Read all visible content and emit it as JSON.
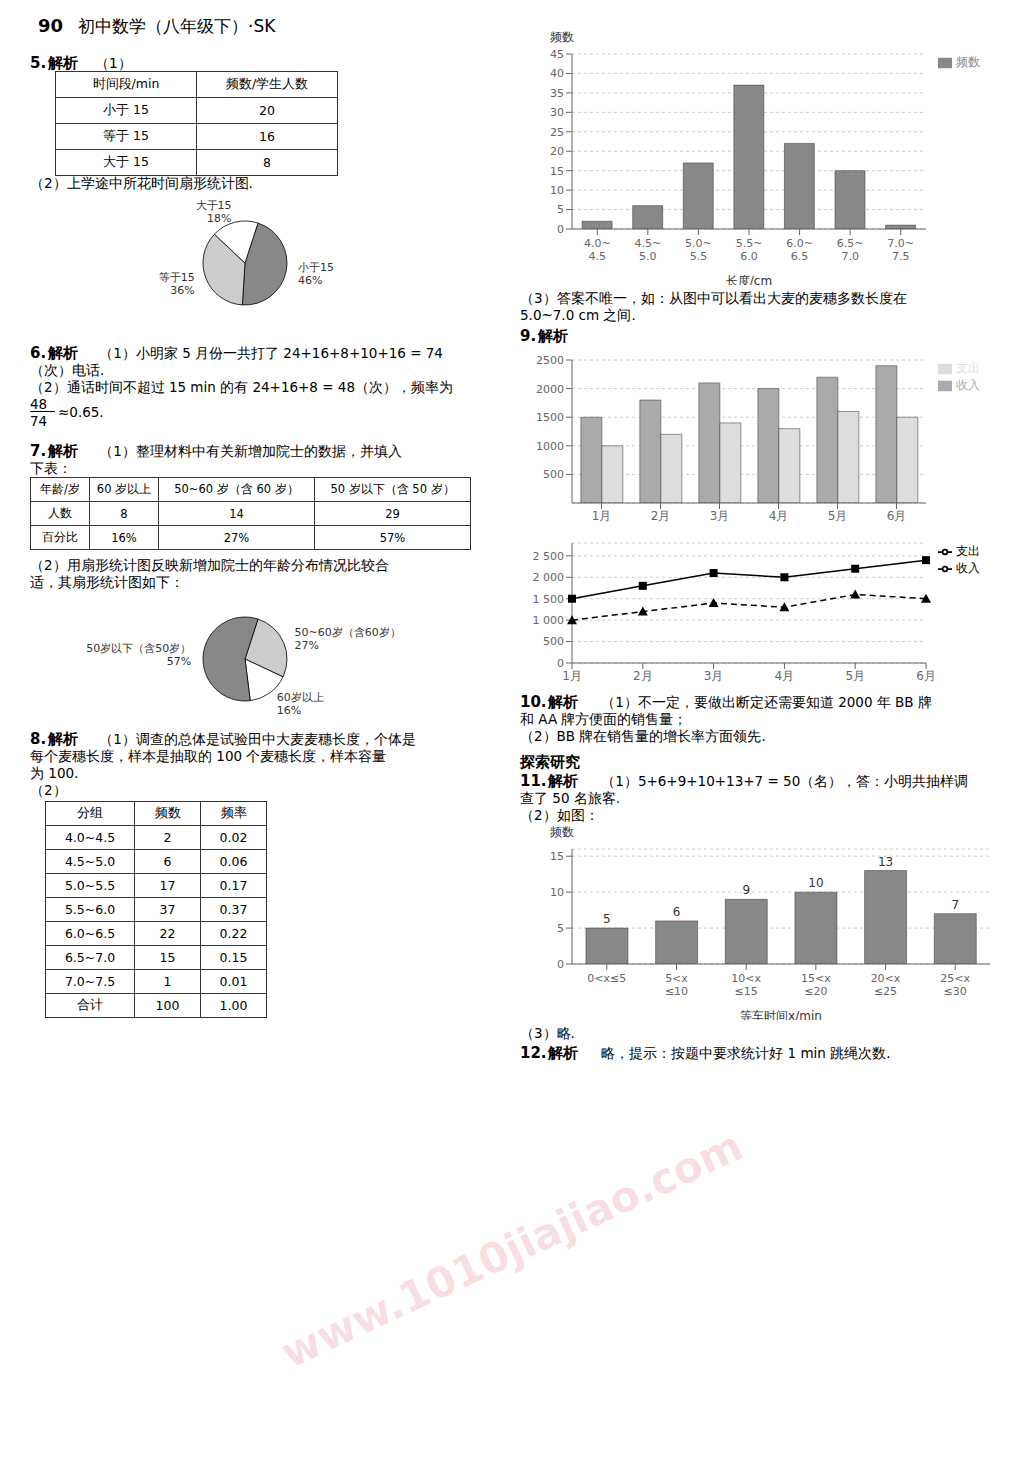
{
  "chart_data": [
    {
      "type": "text",
      "title": "90",
      "subtitle": "初中数学（八年级下）·SK"
    },
    {
      "type": "table",
      "title": "5.",
      "subtitle": "解析",
      "annotations": [
        "（1）"
      ],
      "headers": [
        "时间段/min",
        "频数/学生人数"
      ],
      "rows": [
        [
          "小于 15",
          "20"
        ],
        [
          "等于 15",
          "16"
        ],
        [
          "大于 15",
          "8"
        ]
      ]
    },
    {
      "type": "pie",
      "title": "（2）上学途中所花时间扇形统计图.",
      "categories": [
        "小于15",
        "等于15",
        "大于15"
      ],
      "values": [
        46,
        36,
        18
      ],
      "value_labels": [
        "46%",
        "36%",
        "18%"
      ],
      "colors": [
        "#888888",
        "#cccccc",
        "#ffffff"
      ],
      "data_labels": true
    },
    {
      "type": "text",
      "title": "6.",
      "subtitle": "解析",
      "annotations": [
        " （1）小明家 5 月份一共打了 24+16+8+10+16 = 74",
        "（次）电话.",
        "（2）通话时间不超过 15 min 的有 24+16+8 = 48（次），频率为",
        "48",
        "74",
        "≈0.65."
      ]
    },
    {
      "type": "table",
      "title": "7.",
      "subtitle": "解析",
      "annotations": [
        " （1）整理材料中有关新增加院士的数据，并填入",
        "下表："
      ],
      "headers": [
        "年龄/岁",
        "60 岁以上",
        "50~60 岁（含 60 岁）",
        "50 岁以下（含 50 岁）"
      ],
      "rows": [
        [
          "人数",
          "8",
          "14",
          "29"
        ],
        [
          "百分比",
          "16%",
          "27%",
          "57%"
        ]
      ]
    },
    {
      "type": "pie",
      "annotations": [
        "（2）用扇形统计图反映新增加院士的年龄分布情况比较合",
        "适，其扇形统计图如下："
      ],
      "categories": [
        "50~60岁（含60岁）",
        "60岁以上",
        "50岁以下（含50岁）"
      ],
      "values": [
        27,
        16,
        57
      ],
      "value_labels": [
        "27%",
        "16%",
        "57%"
      ],
      "colors": [
        "#cccccc",
        "#ffffff",
        "#888888"
      ],
      "data_labels": true
    },
    {
      "type": "table",
      "title": "8.",
      "subtitle": "解析",
      "annotations": [
        " （1）调查的总体是试验田中大麦麦穗长度，个体是",
        "每个麦穗长度，样本是抽取的 100 个麦穗长度，样本容量",
        "为 100.",
        "（2）"
      ],
      "headers": [
        "分组",
        "频数",
        "频率"
      ],
      "rows": [
        [
          "4.0~4.5",
          "2",
          "0.02"
        ],
        [
          "4.5~5.0",
          "6",
          "0.06"
        ],
        [
          "5.0~5.5",
          "17",
          "0.17"
        ],
        [
          "5.5~6.0",
          "37",
          "0.37"
        ],
        [
          "6.0~6.5",
          "22",
          "0.22"
        ],
        [
          "6.5~7.0",
          "15",
          "0.15"
        ],
        [
          "7.0~7.5",
          "1",
          "0.01"
        ],
        [
          "合计",
          "100",
          "1.00"
        ]
      ]
    },
    {
      "type": "bar",
      "x_label": "长度/cm",
      "y_label": "频数",
      "categories": [
        "4.0~\n4.5",
        "4.5~\n5.0",
        "5.0~\n5.5",
        "5.5~\n6.0",
        "6.0~\n6.5",
        "6.5~\n7.0",
        "7.0~\n7.5"
      ],
      "series": [
        {
          "name": "频数",
          "color": "#888888",
          "values": [
            2,
            6,
            17,
            37,
            22,
            15,
            1
          ]
        }
      ],
      "ylim": [
        0,
        45
      ],
      "yticks": [
        0,
        5,
        10,
        15,
        20,
        25,
        30,
        35,
        40,
        45
      ],
      "grid": true,
      "legend": "upper right"
    },
    {
      "type": "text",
      "annotations": [
        "（3）答案不唯一，如：从图中可以看出大麦的麦穗多数长度在",
        "5.0~7.0 cm 之间."
      ]
    },
    {
      "type": "bar",
      "title": "9.",
      "subtitle": "解析",
      "categories": [
        "1月",
        "2月",
        "3月",
        "4月",
        "5月",
        "6月"
      ],
      "series": [
        {
          "name": "收入",
          "color": "#aaaaaa",
          "values": [
            1500,
            1800,
            2100,
            2000,
            2200,
            2400
          ]
        },
        {
          "name": "支出",
          "color": "#dddddd",
          "values": [
            1000,
            1200,
            1400,
            1300,
            1600,
            1500
          ]
        }
      ],
      "ylim": [
        0,
        2500
      ],
      "yticks": [
        500,
        1000,
        1500,
        2000,
        2500
      ],
      "grid": true,
      "legend": "upper right"
    },
    {
      "type": "line",
      "categories": [
        "1月",
        "2月",
        "3月",
        "4月",
        "5月",
        "6月"
      ],
      "series": [
        {
          "name": "收入",
          "color": "#000000",
          "marker": "square",
          "line_style": "solid",
          "values": [
            1500,
            1800,
            2100,
            2000,
            2200,
            2400
          ]
        },
        {
          "name": "支出",
          "color": "#000000",
          "marker": "triangle",
          "line_style": "dashed",
          "values": [
            1000,
            1200,
            1400,
            1300,
            1600,
            1500
          ]
        }
      ],
      "ylim": [
        0,
        2800
      ],
      "yticks": [
        0,
        500,
        {
          "value": 1000,
          "label": "1 000"
        },
        {
          "value": 1500,
          "label": "1 500"
        },
        {
          "value": 2000,
          "label": "2 000"
        },
        {
          "value": 2500,
          "label": "2 500"
        }
      ],
      "grid": true,
      "legend": "upper right"
    },
    {
      "type": "text",
      "title": "10.",
      "subtitle": "解析",
      "annotations": [
        " （1）不一定，要做出断定还需要知道 2000 年 BB 牌",
        "和 AA 牌方便面的销售量；",
        "（2）BB 牌在销售量的增长率方面领先."
      ]
    },
    {
      "type": "text",
      "title": "探索研究"
    },
    {
      "type": "text",
      "title": "11.",
      "subtitle": "解析",
      "annotations": [
        " （1）5+6+9+10+13+7 = 50（名），答：小明共抽样调",
        "查了 50 名旅客.",
        "（2）如图："
      ]
    },
    {
      "type": "bar",
      "x_label": "等车时间x/min",
      "y_label": "频数",
      "categories": [
        "0<x≤5",
        "5<x\n≤10",
        "10<x\n≤15",
        "15<x\n≤20",
        "20<x\n≤25",
        "25<x\n≤30"
      ],
      "values": [
        5,
        6,
        9,
        10,
        13,
        7
      ],
      "color": "#888888",
      "ylim": [
        0,
        16
      ],
      "yticks": [
        0,
        5,
        10,
        15
      ],
      "grid": true,
      "data_labels": true
    },
    {
      "type": "text",
      "annotations": [
        "（3）略."
      ]
    },
    {
      "type": "text",
      "title": "12.",
      "subtitle": "解析",
      "annotations": [
        " 略，提示：按题中要求统计好 1 min 跳绳次数."
      ]
    },
    {
      "type": "text",
      "annotations": [
        "www.1010jiajiao.com"
      ]
    }
  ]
}
